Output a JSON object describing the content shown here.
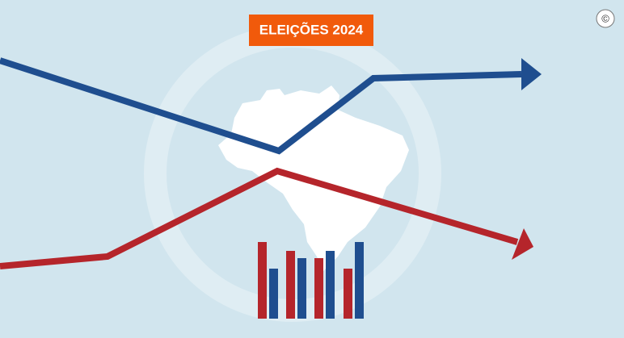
{
  "header": {
    "badge": "ELEIÇÕES 2024",
    "copyright": "©"
  }
}
